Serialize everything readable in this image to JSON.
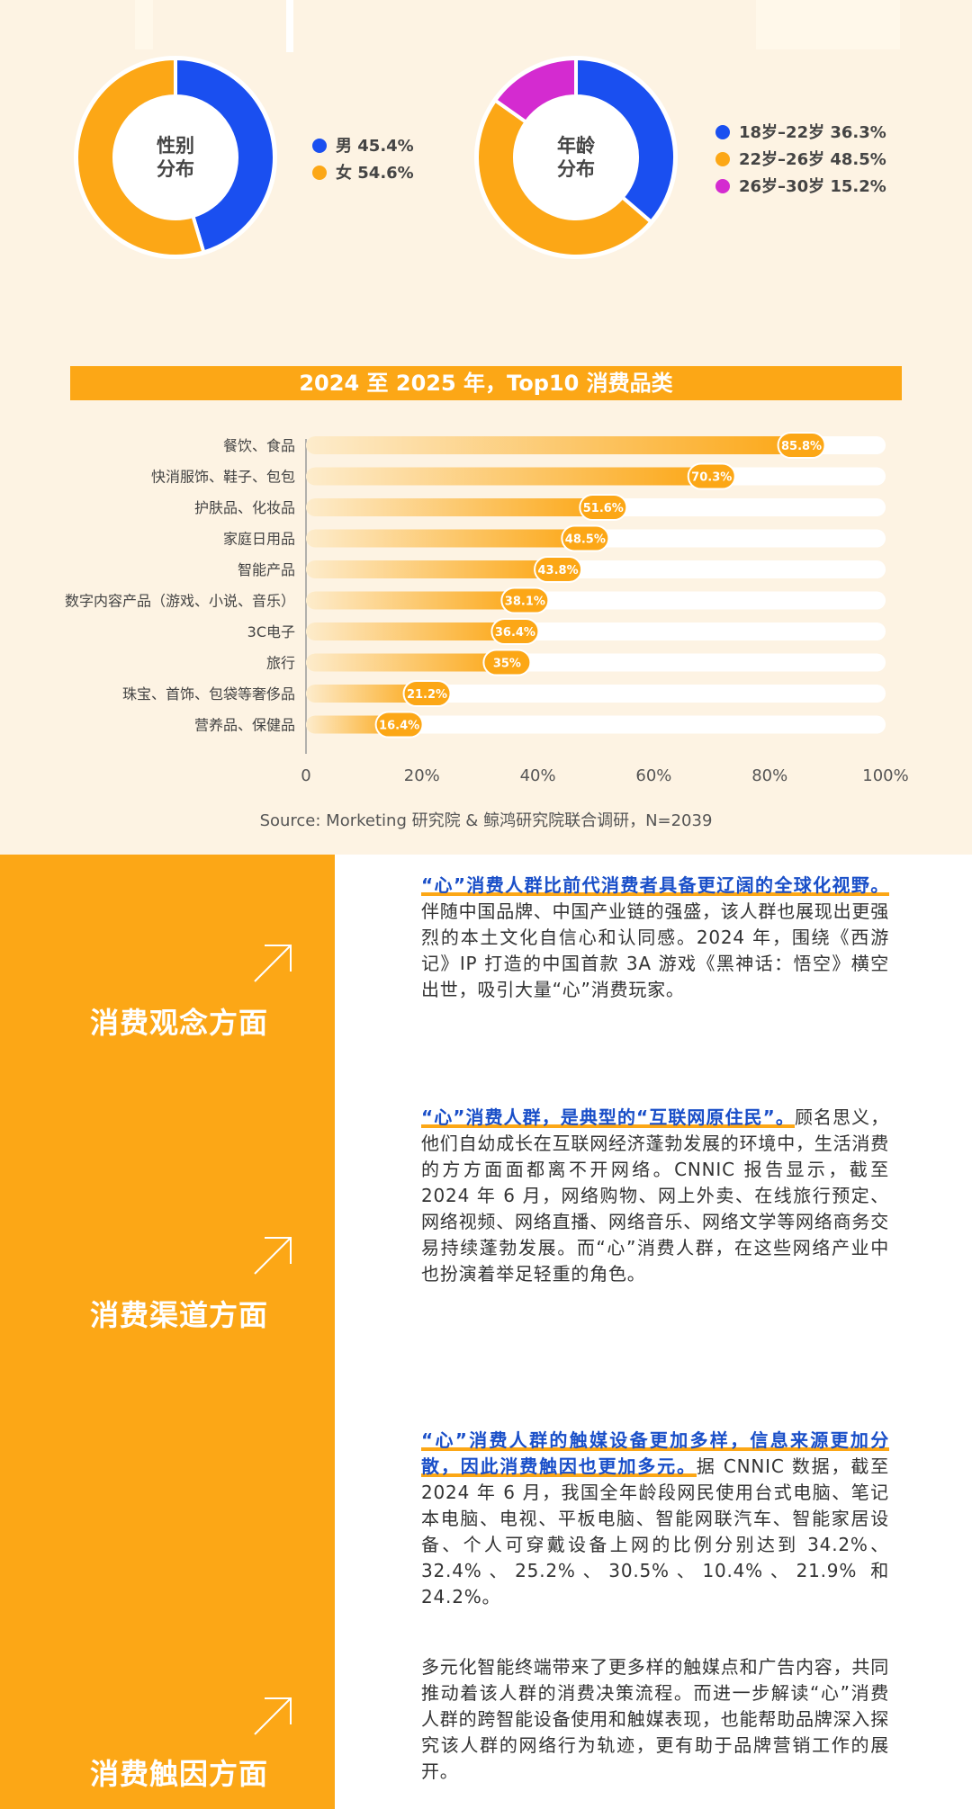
{
  "gender_chart": {
    "center_label_line1": "性别",
    "center_label_line2": "分布",
    "legend": [
      {
        "label": "男 45.4%",
        "color": "#1a4ff0"
      },
      {
        "label": "女 54.6%",
        "color": "#fca716"
      }
    ]
  },
  "age_chart": {
    "center_label_line1": "年龄",
    "center_label_line2": "分布",
    "legend": [
      {
        "label": "18岁–22岁 36.3%",
        "color": "#1a4ff0"
      },
      {
        "label": "22岁–26岁 48.5%",
        "color": "#fca716"
      },
      {
        "label": "26岁–30岁 15.2%",
        "color": "#d42bd0"
      }
    ]
  },
  "bar_section": {
    "title": "2024 至 2025 年，Top10 消费品类",
    "source": "Source: Morketing 研究院 & 鲸鸿研究院联合调研，N=2039"
  },
  "chart_data": [
    {
      "type": "pie",
      "title": "性别分布",
      "categories": [
        "男",
        "女"
      ],
      "values": [
        45.4,
        54.6
      ],
      "colors": [
        "#1a4ff0",
        "#fca716"
      ]
    },
    {
      "type": "pie",
      "title": "年龄分布",
      "categories": [
        "18岁–22岁",
        "22岁–26岁",
        "26岁–30岁"
      ],
      "values": [
        36.3,
        48.5,
        15.2
      ],
      "colors": [
        "#1a4ff0",
        "#fca716",
        "#d42bd0"
      ]
    },
    {
      "type": "bar",
      "orientation": "horizontal",
      "title": "2024 至 2025 年，Top10 消费品类",
      "categories": [
        "餐饮、食品",
        "快消服饰、鞋子、包包",
        "护肤品、化妆品",
        "家庭日用品",
        "智能产品",
        "数字内容产品（游戏、小说、音乐）",
        "3C电子",
        "旅行",
        "珠宝、首饰、包袋等奢侈品",
        "营养品、保健品"
      ],
      "values": [
        85.8,
        70.3,
        51.6,
        48.5,
        43.8,
        38.1,
        36.4,
        35,
        21.2,
        16.4
      ],
      "value_labels": [
        "85.8%",
        "70.3%",
        "51.6%",
        "48.5%",
        "43.8%",
        "38.1%",
        "36.4%",
        "35%",
        "21.2%",
        "16.4%"
      ],
      "xlim": [
        0,
        100
      ],
      "xticks": [
        "0",
        "20%",
        "40%",
        "60%",
        "80%",
        "100%"
      ],
      "bar_color": "#fca716"
    }
  ],
  "sections": [
    {
      "heading": "消费观念方面",
      "highlight": "“心”消费人群比前代消费者具备更辽阔的全球化视野。",
      "body": "伴随中国品牌、中国产业链的强盛，该人群也展现出更强烈的本土文化自信心和认同感。2024 年，围绕《西游记》IP 打造的中国首款 3A 游戏《黑神话：悟空》横空出世，吸引大量“心”消费玩家。"
    },
    {
      "heading": "消费渠道方面",
      "highlight": "“心”消费人群，是典型的“互联网原住民”。",
      "body": "顾名思义，他们自幼成长在互联网经济蓬勃发展的环境中，生活消费的方方面面都离不开网络。CNNIC 报告显示，截至 2024 年 6 月，网络购物、网上外卖、在线旅行预定、网络视频、网络直播、网络音乐、网络文学等网络商务交易持续蓬勃发展。而“心”消费人群，在这些网络产业中也扮演着举足轻重的角色。"
    },
    {
      "heading": "消费触因方面",
      "highlight": "“心”消费人群的触媒设备更加多样，信息来源更加分散，因此消费触因也更加多元。",
      "body": "据 CNNIC 数据，截至 2024 年 6 月，我国全年龄段网民使用台式电脑、笔记本电脑、电视、平板电脑、智能网联汽车、智能家居设备、个人可穿戴设备上网的比例分别达到 34.2%、32.4%、25.2%、30.5%、10.4%、21.9% 和 24.2%。",
      "body2": "多元化智能终端带来了更多样的触媒点和广告内容，共同推动着该人群的消费决策流程。而进一步解读“心”消费人群的跨智能设备使用和触媒表现，也能帮助品牌深入探究该人群的网络行为轨迹，更有助于品牌营销工作的展开。"
    }
  ]
}
